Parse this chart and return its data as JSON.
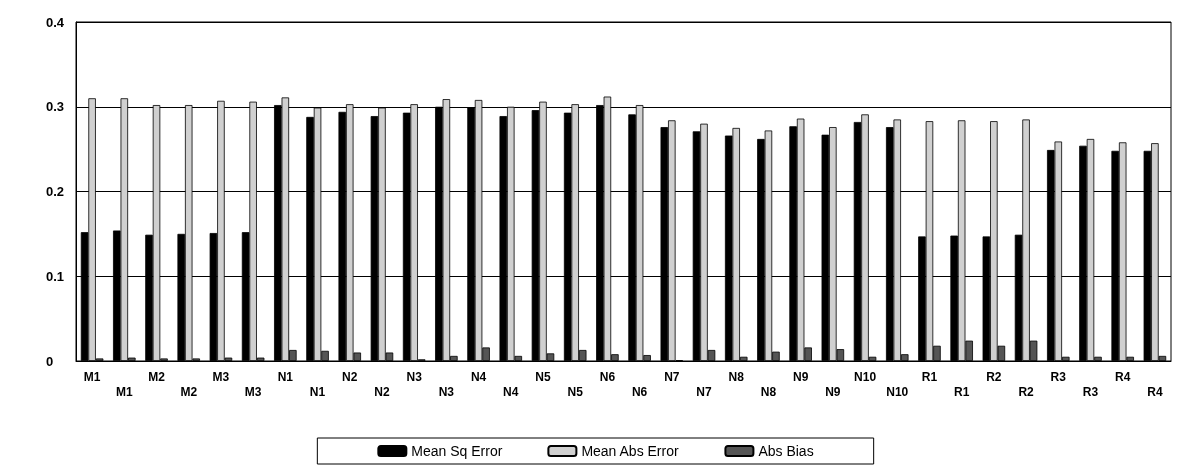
{
  "chart_data": {
    "type": "bar",
    "categories": [
      "M1",
      "M1",
      "M2",
      "M2",
      "M3",
      "M3",
      "N1",
      "N1",
      "N2",
      "N2",
      "N3",
      "N3",
      "N4",
      "N4",
      "N5",
      "N5",
      "N6",
      "N6",
      "N7",
      "N7",
      "N8",
      "N8",
      "N9",
      "N9",
      "N10",
      "N10",
      "R1",
      "R1",
      "R2",
      "R2",
      "R3",
      "R3",
      "R4",
      "R4"
    ],
    "series": [
      {
        "name": "Mean Sq Error",
        "color": "#000000",
        "values": [
          0.152,
          0.154,
          0.149,
          0.15,
          0.151,
          0.152,
          0.302,
          0.288,
          0.294,
          0.289,
          0.293,
          0.3,
          0.299,
          0.289,
          0.296,
          0.293,
          0.302,
          0.291,
          0.276,
          0.271,
          0.266,
          0.262,
          0.277,
          0.267,
          0.282,
          0.276,
          0.147,
          0.148,
          0.147,
          0.149,
          0.249,
          0.254,
          0.248,
          0.248
        ]
      },
      {
        "name": "Mean Abs Error",
        "color": "#d0d0d0",
        "values": [
          0.31,
          0.31,
          0.302,
          0.302,
          0.307,
          0.306,
          0.311,
          0.299,
          0.303,
          0.299,
          0.303,
          0.309,
          0.308,
          0.3,
          0.306,
          0.303,
          0.312,
          0.302,
          0.284,
          0.28,
          0.275,
          0.272,
          0.286,
          0.276,
          0.291,
          0.285,
          0.283,
          0.284,
          0.283,
          0.285,
          0.259,
          0.262,
          0.258,
          0.257
        ]
      },
      {
        "name": "Abs Bias",
        "color": "#555555",
        "values": [
          0.003,
          0.004,
          0.003,
          0.003,
          0.004,
          0.004,
          0.013,
          0.012,
          0.01,
          0.01,
          0.002,
          0.006,
          0.016,
          0.006,
          0.009,
          0.013,
          0.008,
          0.007,
          0.001,
          0.013,
          0.005,
          0.011,
          0.016,
          0.014,
          0.005,
          0.008,
          0.018,
          0.024,
          0.018,
          0.024,
          0.005,
          0.005,
          0.005,
          0.006
        ]
      }
    ],
    "ylim": [
      0,
      0.4
    ],
    "yticks": [
      0,
      0.1,
      0.2,
      0.3,
      0.4
    ],
    "grid": "y",
    "legend": "bottom"
  }
}
